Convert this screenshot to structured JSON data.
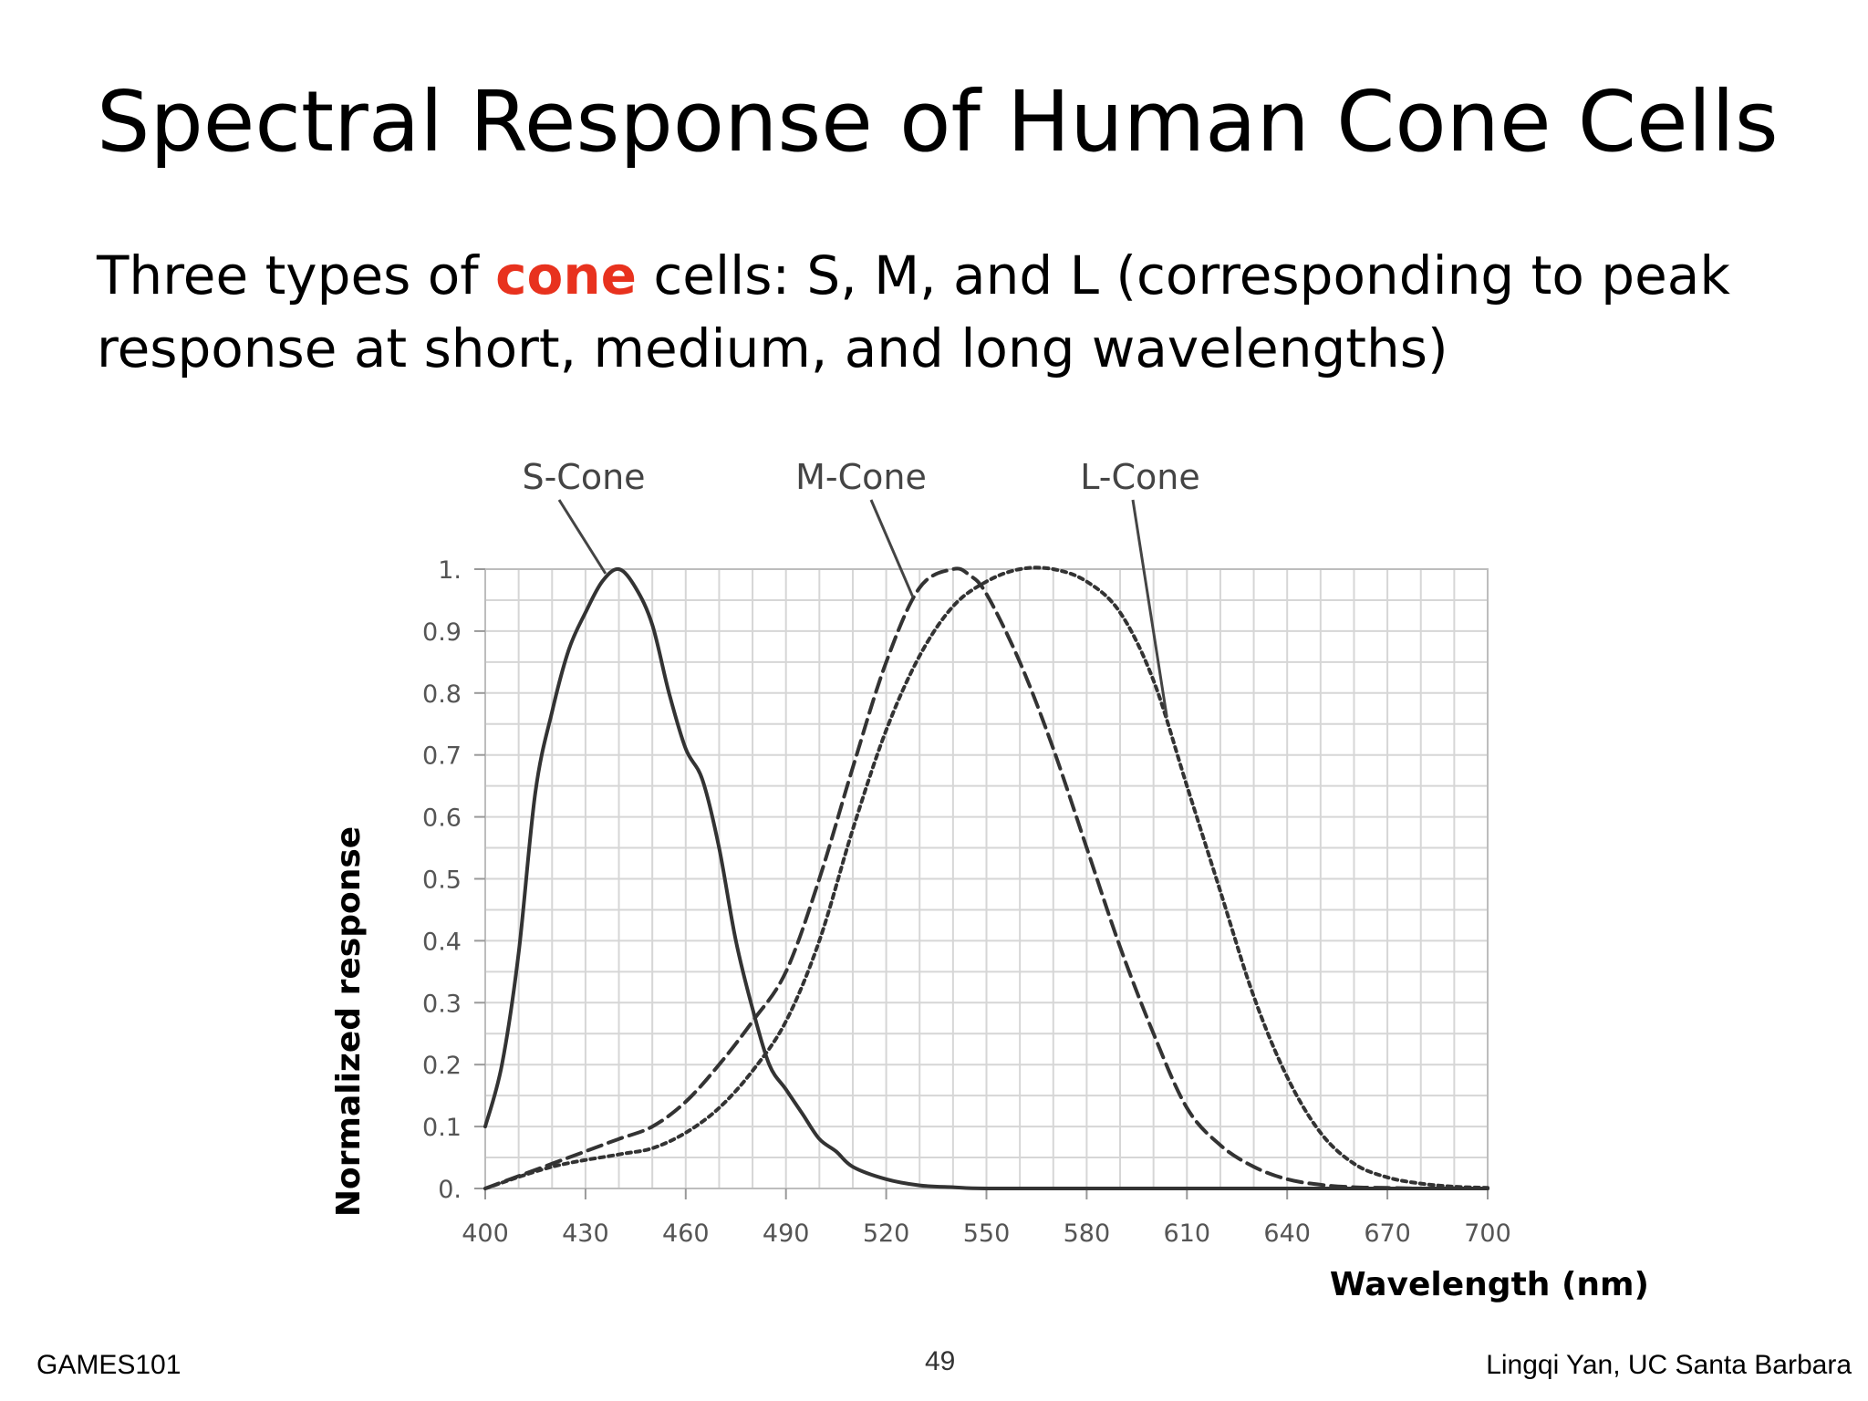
{
  "slide": {
    "title": "Spectral Response of Human Cone Cells",
    "body_prefix": "Three types of ",
    "body_highlight": "cone",
    "body_suffix": " cells: S, M, and L (corresponding to peak response at short, medium, and long wavelengths)"
  },
  "footer": {
    "left": "GAMES101",
    "page": "49",
    "right": "Lingqi Yan, UC Santa Barbara"
  },
  "chart_data": {
    "type": "line",
    "title": "",
    "xlabel": "Wavelength (nm)",
    "ylabel": "Normalized response",
    "xlim": [
      400,
      700
    ],
    "ylim": [
      0,
      1
    ],
    "x_ticks": [
      400,
      430,
      460,
      490,
      520,
      550,
      580,
      610,
      640,
      670,
      700
    ],
    "x_tick_labels": [
      "400",
      "430",
      "460",
      "490",
      "520",
      "550",
      "580",
      "610",
      "640",
      "670",
      "700"
    ],
    "y_ticks": [
      0,
      0.1,
      0.2,
      0.3,
      0.4,
      0.5,
      0.6,
      0.7,
      0.8,
      0.9,
      1
    ],
    "y_tick_labels": [
      "0.",
      "0.1",
      "0.2",
      "0.3",
      "0.4",
      "0.5",
      "0.6",
      "0.7",
      "0.8",
      "0.9",
      "1."
    ],
    "grid": true,
    "series": [
      {
        "name": "S-Cone",
        "line_style": "solid",
        "color": "#333333",
        "x": [
          400,
          405,
          410,
          415,
          420,
          425,
          430,
          435,
          440,
          445,
          450,
          455,
          460,
          465,
          470,
          475,
          480,
          485,
          490,
          495,
          500,
          505,
          510,
          520,
          530,
          540,
          550,
          580,
          610,
          640,
          670,
          700
        ],
        "y": [
          0.1,
          0.2,
          0.38,
          0.64,
          0.77,
          0.87,
          0.93,
          0.98,
          1.0,
          0.97,
          0.91,
          0.8,
          0.71,
          0.66,
          0.55,
          0.4,
          0.29,
          0.2,
          0.16,
          0.12,
          0.08,
          0.06,
          0.035,
          0.015,
          0.005,
          0.002,
          0.0,
          0.0,
          0.0,
          0.0,
          0.0,
          0.0
        ]
      },
      {
        "name": "M-Cone",
        "line_style": "dashed",
        "color": "#333333",
        "x": [
          400,
          410,
          420,
          430,
          440,
          450,
          460,
          470,
          480,
          490,
          500,
          510,
          520,
          530,
          540,
          545,
          550,
          560,
          570,
          580,
          590,
          600,
          610,
          620,
          630,
          640,
          650,
          660,
          670,
          680,
          690,
          700
        ],
        "y": [
          0.0,
          0.02,
          0.04,
          0.06,
          0.08,
          0.1,
          0.14,
          0.2,
          0.27,
          0.35,
          0.5,
          0.68,
          0.85,
          0.97,
          1.0,
          0.99,
          0.96,
          0.85,
          0.71,
          0.55,
          0.39,
          0.25,
          0.13,
          0.07,
          0.035,
          0.015,
          0.006,
          0.002,
          0.001,
          0.0,
          0.0,
          0.0
        ]
      },
      {
        "name": "L-Cone",
        "line_style": "dotted",
        "color": "#333333",
        "x": [
          400,
          420,
          440,
          450,
          460,
          470,
          480,
          490,
          500,
          510,
          520,
          530,
          540,
          550,
          560,
          570,
          580,
          590,
          600,
          610,
          620,
          630,
          640,
          650,
          660,
          670,
          680,
          690,
          700
        ],
        "y": [
          0.0,
          0.035,
          0.055,
          0.065,
          0.09,
          0.13,
          0.19,
          0.27,
          0.4,
          0.58,
          0.74,
          0.86,
          0.94,
          0.98,
          1.0,
          1.0,
          0.98,
          0.93,
          0.82,
          0.65,
          0.48,
          0.31,
          0.18,
          0.09,
          0.04,
          0.018,
          0.008,
          0.003,
          0.001
        ]
      }
    ]
  }
}
